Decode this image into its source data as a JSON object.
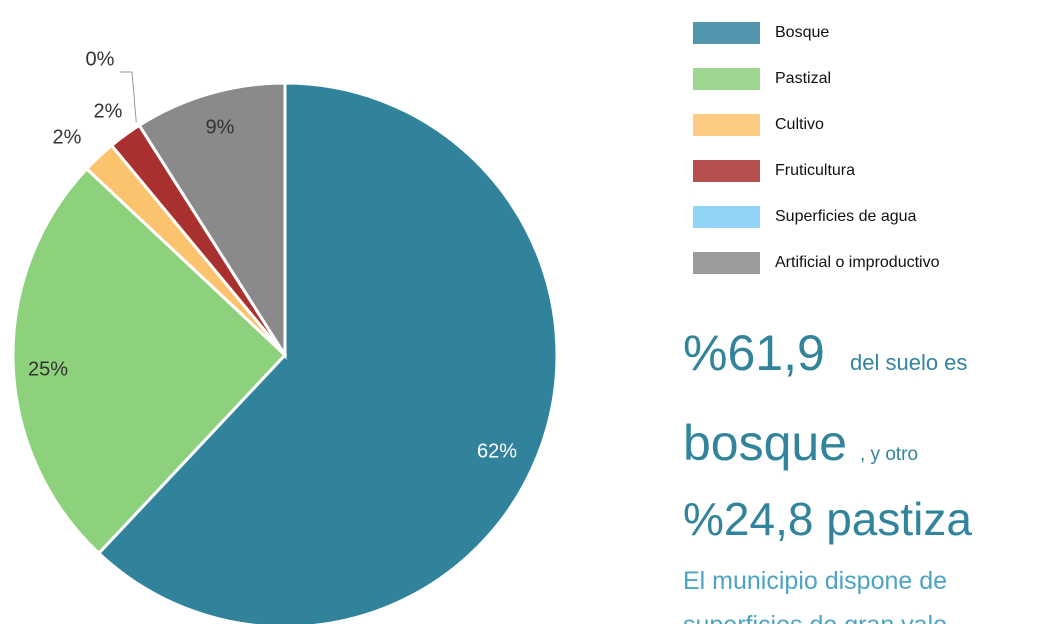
{
  "chart_data": {
    "type": "pie",
    "categories": [
      "Bosque",
      "Pastizal",
      "Cultivo",
      "Fruticultura",
      "Superficies de agua",
      "Artificial o improductivo"
    ],
    "values": [
      62,
      25,
      2,
      2,
      0,
      9
    ],
    "value_labels": [
      "62%",
      "25%",
      "2%",
      "2%",
      "0%",
      "9%"
    ],
    "colors": [
      "#31839c",
      "#8dd17c",
      "#fbc36d",
      "#a8312f",
      "#7ecdf4",
      "#8a8a8a"
    ]
  },
  "notes": {
    "line1_big": "%61,9",
    "line1_small": "del suelo es",
    "line2_big": "bosque",
    "line2_small": ", y otro",
    "line3_big": "%24,8 pastiza",
    "line4": "El municipio dispone de",
    "line5": "superficies de gran valo"
  }
}
